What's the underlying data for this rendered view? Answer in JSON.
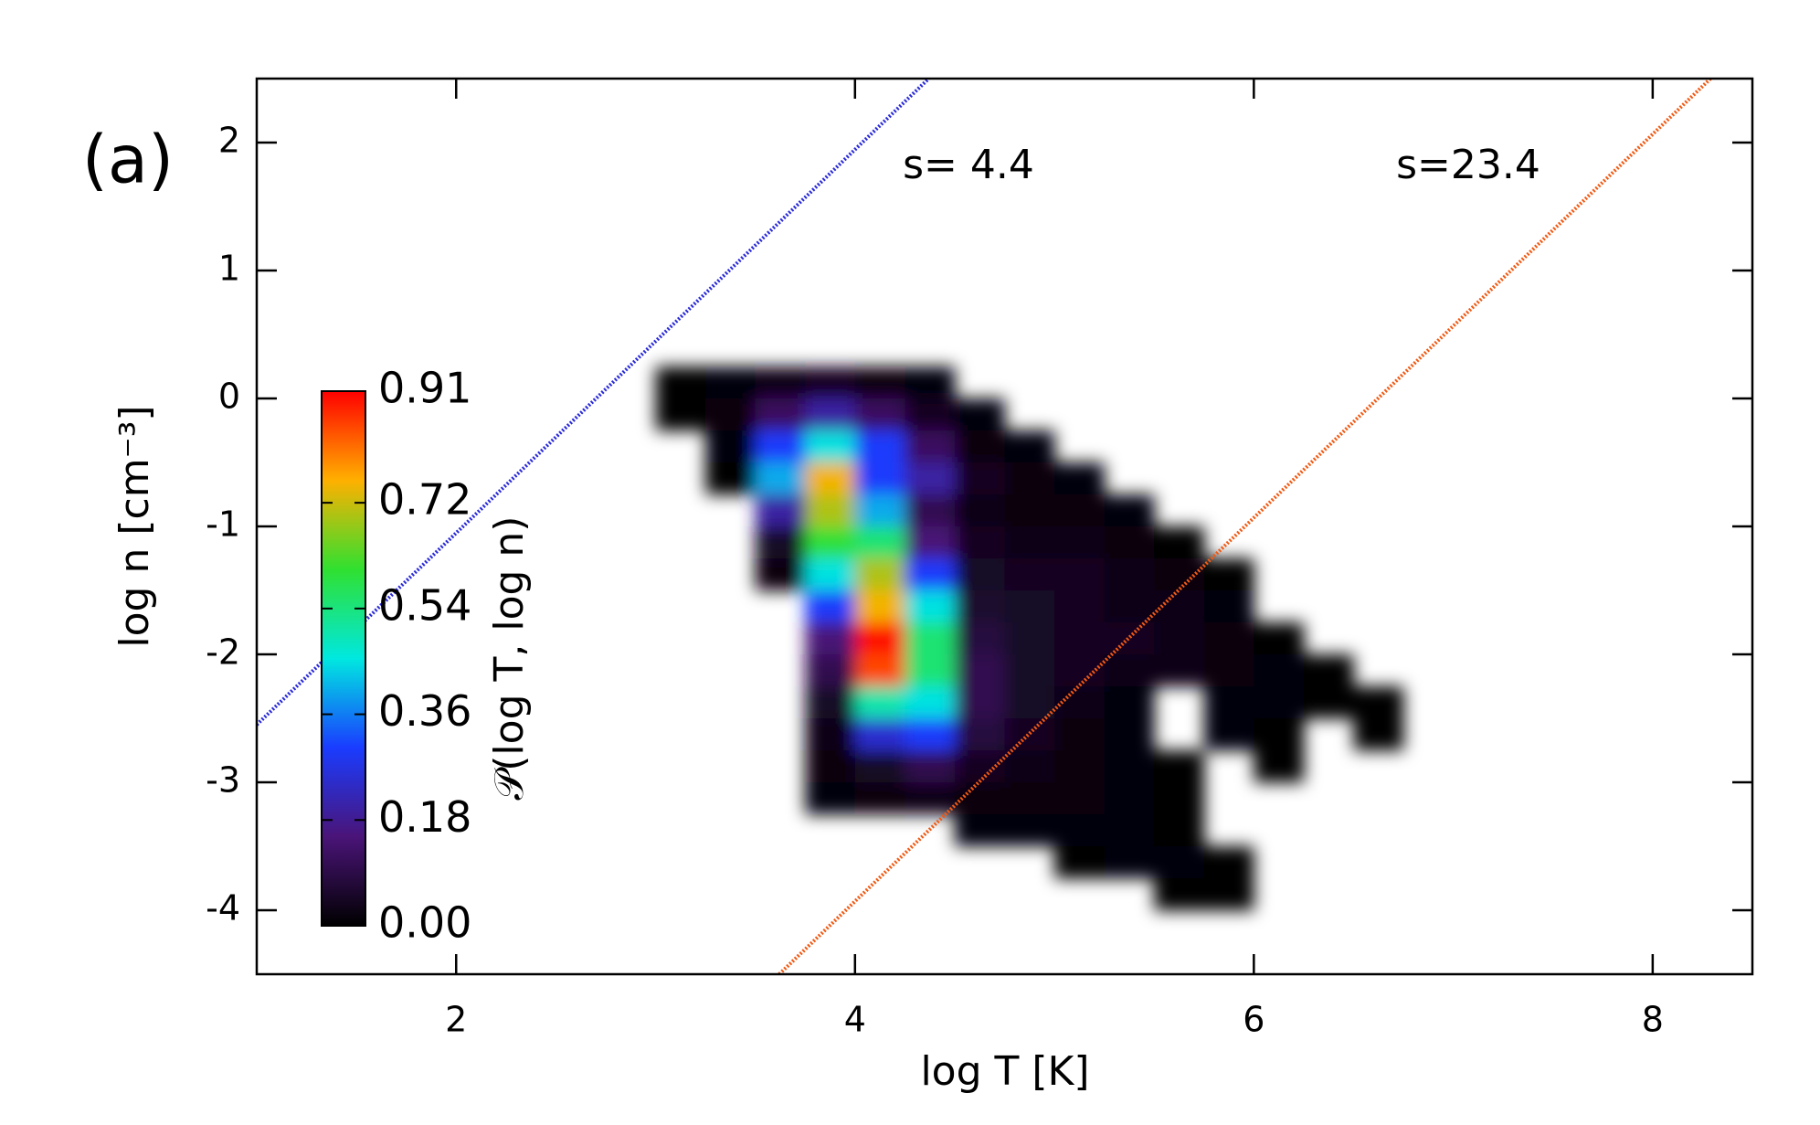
{
  "chart_data": {
    "type": "heatmap",
    "title": "(a)",
    "xlabel": "log T [K]",
    "ylabel": "log n [cm⁻³]",
    "colorbar_label": "𝒫(log T, log n)",
    "xlim": [
      1,
      8.5
    ],
    "ylim": [
      -4.5,
      2.5
    ],
    "xticks": [
      2,
      4,
      6,
      8
    ],
    "yticks": [
      -4,
      -3,
      -2,
      -1,
      0,
      1,
      2
    ],
    "zlim": [
      0,
      0.91
    ],
    "zticks": [
      {
        "value": 0,
        "label": "0.00"
      },
      0.18,
      0.36,
      0.54,
      0.72,
      0.91
    ],
    "colorscale": [
      "#000000",
      "#4a1478",
      "#1a3cff",
      "#00e8e0",
      "#30e030",
      "#ffb000",
      "#ff0000"
    ],
    "xedges": [
      3,
      3.25,
      3.5,
      3.75,
      4,
      4.25,
      4.5,
      4.75,
      5,
      5.25,
      5.5,
      5.75,
      6,
      6.25,
      6.5,
      6.75,
      7
    ],
    "yedges": [
      0.25,
      0,
      -0.25,
      -0.5,
      -0.75,
      -1,
      -1.25,
      -1.5,
      -1.75,
      -2,
      -2.25,
      -2.5,
      -2.75,
      -3,
      -3.25,
      -3.5,
      -3.75,
      -4
    ],
    "z": [
      [
        0.0,
        0.01,
        0.03,
        0.04,
        0.02,
        0.01,
        null,
        null,
        null,
        null,
        null,
        null,
        null,
        null,
        null,
        null
      ],
      [
        0.0,
        0.02,
        0.12,
        0.2,
        0.12,
        0.04,
        0.01,
        null,
        null,
        null,
        null,
        null,
        null,
        null,
        null,
        null
      ],
      [
        null,
        0.01,
        0.3,
        0.45,
        0.3,
        0.12,
        0.02,
        0.01,
        null,
        null,
        null,
        null,
        null,
        null,
        null,
        null
      ],
      [
        null,
        0.0,
        0.4,
        0.75,
        0.3,
        0.2,
        0.04,
        0.02,
        0.01,
        null,
        null,
        null,
        null,
        null,
        null,
        null
      ],
      [
        null,
        null,
        0.2,
        0.7,
        0.4,
        0.1,
        0.03,
        0.02,
        0.02,
        0.01,
        null,
        null,
        null,
        null,
        null,
        null
      ],
      [
        null,
        null,
        0.05,
        0.6,
        0.55,
        0.15,
        0.04,
        0.03,
        0.03,
        0.02,
        0.0,
        null,
        null,
        null,
        null,
        null
      ],
      [
        null,
        null,
        0.02,
        0.45,
        0.7,
        0.3,
        0.05,
        0.04,
        0.04,
        0.03,
        0.02,
        0.0,
        null,
        null,
        null,
        null
      ],
      [
        null,
        null,
        null,
        0.3,
        0.75,
        0.45,
        0.06,
        0.05,
        0.04,
        0.03,
        0.03,
        0.01,
        null,
        null,
        null,
        null
      ],
      [
        null,
        null,
        null,
        0.15,
        0.9,
        0.55,
        0.08,
        0.05,
        0.04,
        0.04,
        0.03,
        0.02,
        0.0,
        null,
        null,
        null
      ],
      [
        null,
        null,
        null,
        0.1,
        0.85,
        0.55,
        0.1,
        0.05,
        0.04,
        0.03,
        0.03,
        0.02,
        0.01,
        0.0,
        null,
        null
      ],
      [
        null,
        null,
        null,
        0.05,
        0.5,
        0.45,
        0.1,
        0.05,
        0.03,
        0.01,
        null,
        0.01,
        0.01,
        0.0,
        0.0,
        null
      ],
      [
        null,
        null,
        null,
        0.03,
        0.25,
        0.3,
        0.08,
        0.04,
        0.02,
        0.01,
        null,
        0.01,
        0.0,
        null,
        0.0,
        null
      ],
      [
        null,
        null,
        null,
        0.02,
        0.05,
        0.1,
        0.04,
        0.03,
        0.02,
        0.01,
        0.0,
        null,
        0.0,
        null,
        null,
        null
      ],
      [
        null,
        null,
        null,
        0.01,
        0.02,
        0.03,
        0.02,
        0.02,
        0.02,
        0.01,
        0.0,
        null,
        null,
        null,
        null,
        null
      ],
      [
        null,
        null,
        null,
        null,
        null,
        null,
        0.01,
        0.01,
        0.01,
        0.01,
        0.0,
        null,
        null,
        null,
        null,
        null
      ],
      [
        null,
        null,
        null,
        null,
        null,
        null,
        null,
        null,
        0.0,
        0.01,
        0.01,
        0.0,
        null,
        null,
        null,
        null
      ],
      [
        null,
        null,
        null,
        null,
        null,
        null,
        null,
        null,
        null,
        null,
        0.0,
        0.0,
        null,
        null,
        null,
        null
      ]
    ],
    "lines": [
      {
        "color": "#2a2ad8",
        "x": [
          1,
          4.37
        ],
        "y": [
          -2.55,
          2.5
        ]
      },
      {
        "color": "#f05a14",
        "x": [
          3.62,
          8.29
        ],
        "y": [
          -4.5,
          2.5
        ]
      }
    ],
    "annotations": [
      "s= 4.4",
      "s=23.4"
    ]
  }
}
